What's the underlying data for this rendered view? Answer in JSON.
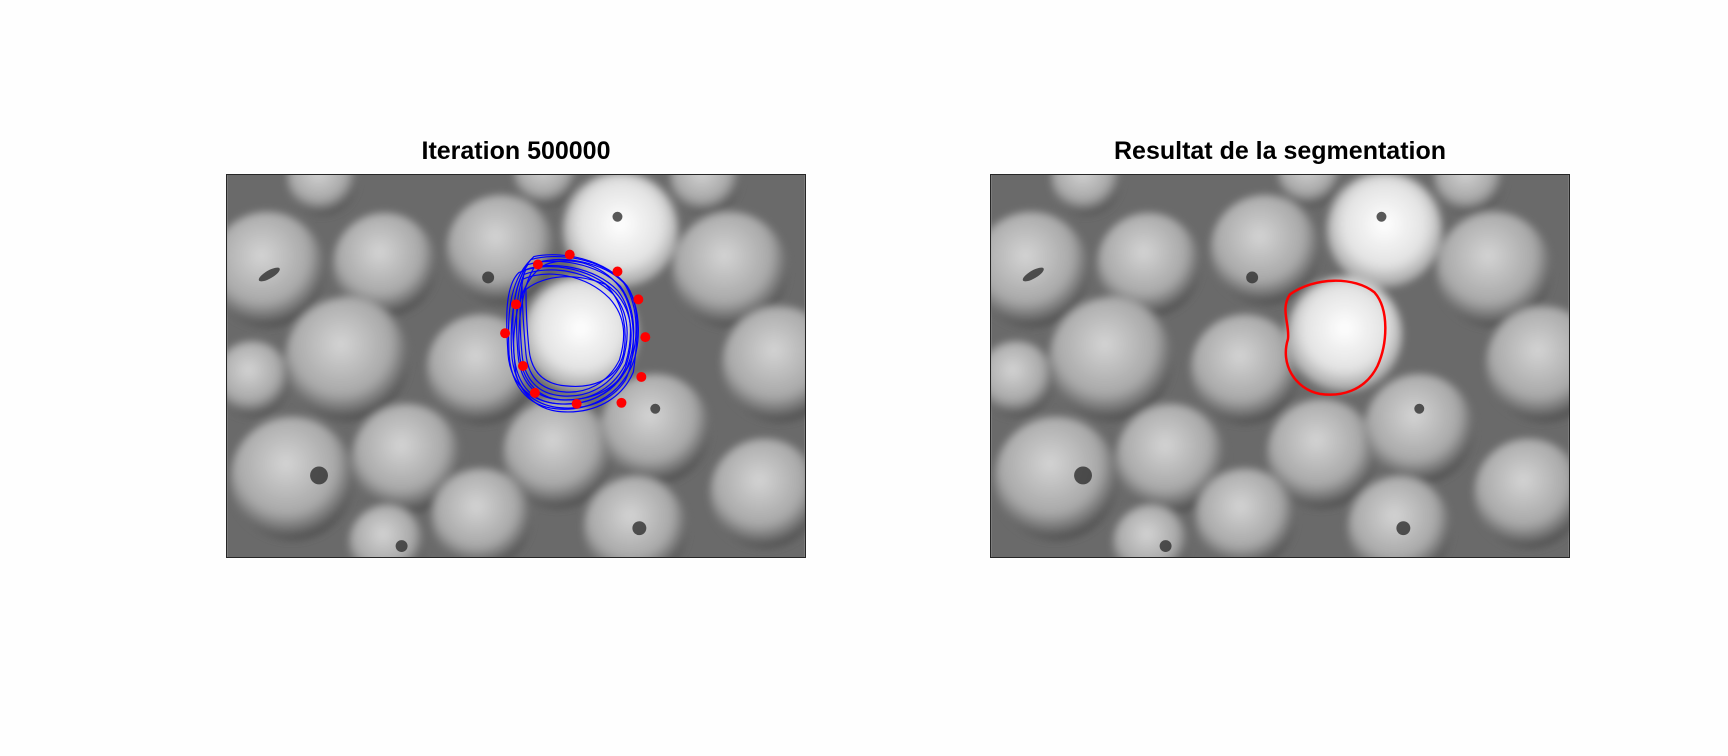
{
  "figure": {
    "left_panel": {
      "title": "Iteration 500000"
    },
    "right_panel": {
      "title": "Resultat de la segmentation"
    }
  },
  "colors": {
    "background": "#fefefe",
    "snake_contours": "#0000ff",
    "control_points": "#ff0000",
    "final_contour": "#ff0000"
  },
  "content": {
    "image": "grayscale photo of apples",
    "left_overlay": "blue snake contours with red control points",
    "right_overlay": "red segmentation contour"
  }
}
